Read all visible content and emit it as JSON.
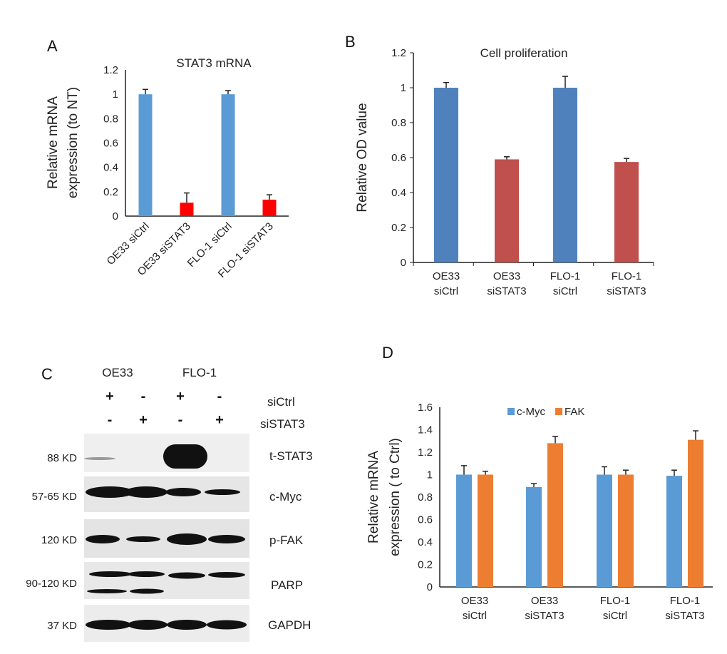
{
  "panels": {
    "a": "A",
    "b": "B",
    "c": "C",
    "d": "D"
  },
  "chart_data": [
    {
      "panel": "A",
      "type": "bar",
      "title": "STAT3 mRNA",
      "ylabel": [
        "Relative mRNA",
        "expression (to NT)"
      ],
      "xlabel": "",
      "categories": [
        "OE33 siCtrl",
        "OE33 siSTAT3",
        "FLO-1 siCtrl",
        "FLO-1 siSTAT3"
      ],
      "values": [
        1.0,
        0.11,
        1.0,
        0.135
      ],
      "errors": [
        0.04,
        0.08,
        0.03,
        0.04
      ],
      "colors": [
        "#5b9bd5",
        "#ff0000",
        "#5b9bd5",
        "#ff0000"
      ],
      "ylim": [
        0,
        1.2
      ],
      "yticks": [
        "0",
        "0.2",
        "0.4",
        "0.6",
        "0.8",
        "1",
        "1.2"
      ],
      "grid": false
    },
    {
      "panel": "B",
      "type": "bar",
      "title": "Cell proliferation",
      "ylabel": [
        "Relative OD value"
      ],
      "xlabel": "",
      "categories": [
        [
          "OE33",
          "siCtrl"
        ],
        [
          "OE33",
          "siSTAT3"
        ],
        [
          "FLO-1",
          "siCtrl"
        ],
        [
          "FLO-1",
          "siSTAT3"
        ]
      ],
      "values": [
        1.0,
        0.59,
        1.0,
        0.575
      ],
      "errors": [
        0.03,
        0.015,
        0.065,
        0.02
      ],
      "colors": [
        "#4f81bd",
        "#c0504d",
        "#4f81bd",
        "#c0504d"
      ],
      "ylim": [
        0,
        1.2
      ],
      "yticks": [
        "0",
        "0.2",
        "0.4",
        "0.6",
        "0.8",
        "1",
        "1.2"
      ],
      "grid": false
    },
    {
      "panel": "D",
      "type": "bar",
      "title": "",
      "ylabel": [
        "Relative mRNA",
        "expression ( to Ctrl)"
      ],
      "xlabel": "",
      "categories": [
        [
          "OE33",
          "siCtrl"
        ],
        [
          "OE33",
          "siSTAT3"
        ],
        [
          "FLO-1",
          "siCtrl"
        ],
        [
          "FLO-1",
          "siSTAT3"
        ]
      ],
      "series": [
        {
          "name": "c-Myc",
          "color": "#5b9bd5",
          "values": [
            1.0,
            0.89,
            1.0,
            0.99
          ],
          "errors": [
            0.08,
            0.03,
            0.07,
            0.05
          ]
        },
        {
          "name": "FAK",
          "color": "#ed7d31",
          "values": [
            1.0,
            1.28,
            1.0,
            1.31
          ],
          "errors": [
            0.03,
            0.06,
            0.04,
            0.08
          ]
        }
      ],
      "ylim": [
        0,
        1.6
      ],
      "yticks": [
        "0",
        "0.2",
        "0.4",
        "0.6",
        "0.8",
        "1",
        "1.2",
        "1.4",
        "1.6"
      ],
      "legend": "top",
      "grid": false
    }
  ],
  "blot": {
    "cell_lines": [
      "OE33",
      "FLO-1"
    ],
    "treatments": [
      {
        "name": "siCtrl",
        "signs": [
          "+",
          "-",
          "+",
          "-"
        ]
      },
      {
        "name": "siSTAT3",
        "signs": [
          "-",
          "+",
          "-",
          "+"
        ]
      }
    ],
    "rows": [
      {
        "size": "88 KD",
        "protein": "t-STAT3"
      },
      {
        "size": "57-65 KD",
        "protein": "c-Myc"
      },
      {
        "size": "120 KD",
        "protein": "p-FAK"
      },
      {
        "size": "90-120 KD",
        "protein": "PARP"
      },
      {
        "size": "37 KD",
        "protein": "GAPDH"
      }
    ]
  }
}
